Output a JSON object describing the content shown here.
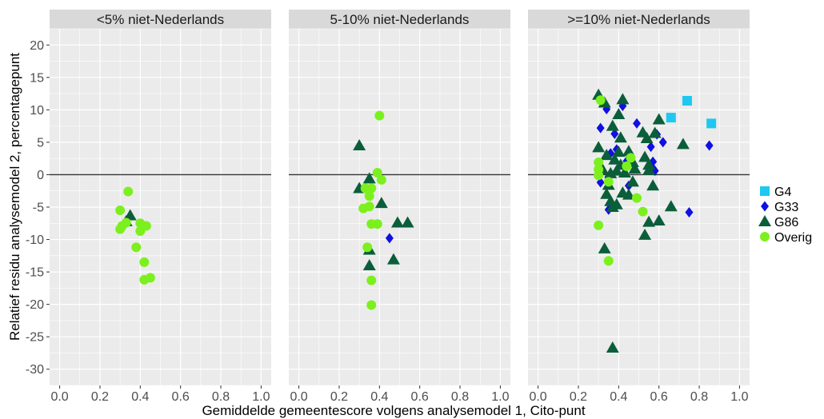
{
  "chart_data": {
    "type": "scatter",
    "xlabel": "Gemiddelde gemeentescore volgens analysemodel 1, Cito-punt",
    "ylabel": "Relatief residu analysemodel 2, percentagepunt",
    "xlim": [
      -0.05,
      1.05
    ],
    "ylim": [
      -32.5,
      22.5
    ],
    "x_ticks": [
      "0.0",
      "0.2",
      "0.4",
      "0.6",
      "0.8",
      "1.0"
    ],
    "y_ticks": [
      "20",
      "15",
      "10",
      "5",
      "0",
      "-5",
      "-10",
      "-15",
      "-20",
      "-25",
      "-30"
    ],
    "reference_line_y": 0,
    "legend_position": "right",
    "colors": {
      "G4": "#1ec8f0",
      "G33": "#1010e0",
      "G86": "#0b5e3a",
      "Overig": "#7cf01e",
      "panel_bg": "#ebebeb",
      "strip_bg": "#d9d9d9",
      "grid": "#ffffff"
    },
    "series": [
      {
        "name": "G4",
        "shape": "square"
      },
      {
        "name": "G33",
        "shape": "diamond"
      },
      {
        "name": "G86",
        "shape": "triangle"
      },
      {
        "name": "Overig",
        "shape": "circle"
      }
    ],
    "panels": [
      {
        "title": "<5% niet-Nederlands",
        "points": {
          "G4": [],
          "G33": [],
          "G86": [
            [
              0.35,
              -6.3
            ],
            [
              0.33,
              -7.2
            ]
          ],
          "Overig": [
            [
              0.34,
              -2.6
            ],
            [
              0.3,
              -5.5
            ],
            [
              0.3,
              -8.4
            ],
            [
              0.31,
              -7.9
            ],
            [
              0.33,
              -7.4
            ],
            [
              0.38,
              -11.2
            ],
            [
              0.4,
              -7.5
            ],
            [
              0.41,
              -8.0
            ],
            [
              0.4,
              -8.7
            ],
            [
              0.43,
              -7.9
            ],
            [
              0.42,
              -13.5
            ],
            [
              0.42,
              -16.2
            ],
            [
              0.45,
              -15.9
            ]
          ]
        }
      },
      {
        "title": "5-10% niet-Nederlands",
        "points": {
          "G4": [],
          "G33": [
            [
              0.45,
              -9.8
            ]
          ],
          "G86": [
            [
              0.3,
              4.5
            ],
            [
              0.35,
              -0.6
            ],
            [
              0.3,
              -2.1
            ],
            [
              0.41,
              -4.4
            ],
            [
              0.49,
              -7.4
            ],
            [
              0.54,
              -7.4
            ],
            [
              0.35,
              -11.6
            ],
            [
              0.35,
              -14.0
            ],
            [
              0.47,
              -13.1
            ]
          ],
          "Overig": [
            [
              0.4,
              9.1
            ],
            [
              0.39,
              0.3
            ],
            [
              0.41,
              -0.8
            ],
            [
              0.33,
              -2.1
            ],
            [
              0.36,
              -2.1
            ],
            [
              0.35,
              -3.3
            ],
            [
              0.35,
              -4.9
            ],
            [
              0.32,
              -5.2
            ],
            [
              0.36,
              -7.6
            ],
            [
              0.39,
              -7.6
            ],
            [
              0.34,
              -11.2
            ],
            [
              0.36,
              -16.3
            ],
            [
              0.36,
              -20.1
            ]
          ]
        }
      },
      {
        "title": ">=10% niet-Nederlands",
        "points": {
          "G4": [
            [
              0.74,
              11.4
            ],
            [
              0.66,
              8.8
            ],
            [
              0.86,
              7.9
            ]
          ],
          "G33": [
            [
              0.34,
              10.1
            ],
            [
              0.42,
              10.6
            ],
            [
              0.31,
              7.2
            ],
            [
              0.38,
              6.3
            ],
            [
              0.49,
              7.9
            ],
            [
              0.59,
              6.2
            ],
            [
              0.56,
              4.3
            ],
            [
              0.85,
              4.5
            ],
            [
              0.62,
              5.0
            ],
            [
              0.39,
              3.9
            ],
            [
              0.36,
              3.3
            ],
            [
              0.44,
              2.1
            ],
            [
              0.57,
              1.0
            ],
            [
              0.35,
              -0.3
            ],
            [
              0.31,
              -1.2
            ],
            [
              0.45,
              -1.7
            ],
            [
              0.75,
              -5.8
            ],
            [
              0.35,
              -5.4
            ],
            [
              0.58,
              0.6
            ],
            [
              0.57,
              2.0
            ]
          ],
          "G86": [
            [
              0.3,
              12.3
            ],
            [
              0.33,
              11.1
            ],
            [
              0.42,
              11.6
            ],
            [
              0.4,
              9.3
            ],
            [
              0.37,
              7.5
            ],
            [
              0.41,
              5.7
            ],
            [
              0.52,
              6.5
            ],
            [
              0.54,
              5.6
            ],
            [
              0.58,
              6.4
            ],
            [
              0.6,
              8.5
            ],
            [
              0.72,
              4.7
            ],
            [
              0.3,
              4.2
            ],
            [
              0.4,
              3.5
            ],
            [
              0.45,
              3.6
            ],
            [
              0.34,
              3.0
            ],
            [
              0.38,
              2.3
            ],
            [
              0.41,
              1.5
            ],
            [
              0.47,
              1.9
            ],
            [
              0.53,
              2.7
            ],
            [
              0.55,
              1.5
            ],
            [
              0.32,
              0.8
            ],
            [
              0.36,
              0.2
            ],
            [
              0.39,
              0.6
            ],
            [
              0.43,
              0.3
            ],
            [
              0.48,
              0.9
            ],
            [
              0.55,
              0.7
            ],
            [
              0.35,
              -1.6
            ],
            [
              0.42,
              -2.8
            ],
            [
              0.47,
              -1.1
            ],
            [
              0.57,
              -1.7
            ],
            [
              0.34,
              -3.0
            ],
            [
              0.36,
              -4.1
            ],
            [
              0.39,
              -4.6
            ],
            [
              0.45,
              -3.1
            ],
            [
              0.37,
              -5.0
            ],
            [
              0.53,
              -9.3
            ],
            [
              0.55,
              -7.3
            ],
            [
              0.6,
              -7.1
            ],
            [
              0.66,
              -4.9
            ],
            [
              0.33,
              -11.4
            ],
            [
              0.37,
              -26.7
            ]
          ],
          "Overig": [
            [
              0.31,
              11.5
            ],
            [
              0.3,
              1.9
            ],
            [
              0.3,
              0.8
            ],
            [
              0.3,
              -0.1
            ],
            [
              0.35,
              -1.1
            ],
            [
              0.49,
              -3.6
            ],
            [
              0.52,
              -5.7
            ],
            [
              0.3,
              -7.8
            ],
            [
              0.35,
              -13.3
            ],
            [
              0.44,
              1.3
            ],
            [
              0.46,
              2.6
            ]
          ]
        }
      }
    ]
  }
}
